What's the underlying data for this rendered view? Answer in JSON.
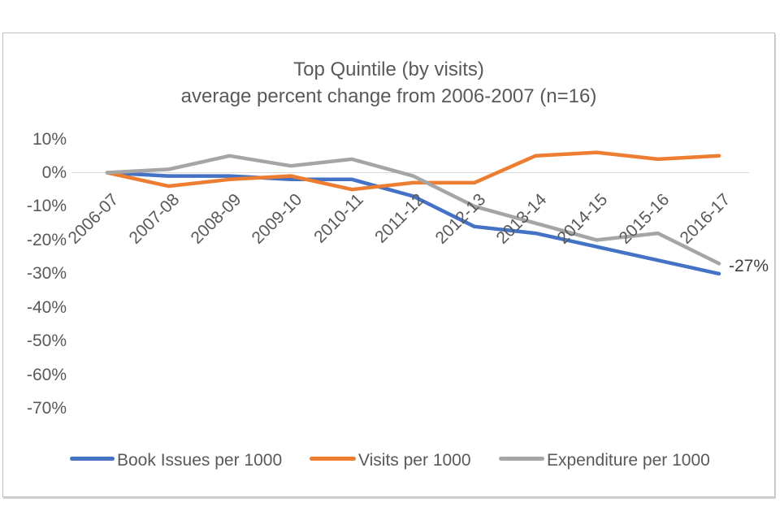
{
  "chart": {
    "title_line1": "Top Quintile (by visits)",
    "title_line2": "average percent change from 2006-2007 (n=16)"
  },
  "chart_data": {
    "type": "line",
    "title": "Top Quintile (by visits)",
    "subtitle": "average percent change from 2006-2007 (n=16)",
    "categories": [
      "2006-07",
      "2007-08",
      "2008-09",
      "2009-10",
      "2010-11",
      "2011-12",
      "2012-13",
      "2013-14",
      "2014-15",
      "2015-16",
      "2016-17"
    ],
    "series": [
      {
        "name": "Book Issues per 1000",
        "color": "#4472C4",
        "values": [
          0,
          -1,
          -1,
          -2,
          -2,
          -7,
          -16,
          -18,
          -22,
          -26,
          -30
        ]
      },
      {
        "name": "Visits per 1000",
        "color": "#ED7D31",
        "values": [
          0,
          -4,
          -2,
          -1,
          -5,
          -3,
          -3,
          5,
          6,
          4,
          5
        ]
      },
      {
        "name": "Expenditure per 1000",
        "color": "#A5A5A5",
        "values": [
          0,
          1,
          5,
          2,
          4,
          -1,
          -10,
          -15,
          -20,
          -18,
          -27
        ]
      }
    ],
    "y_axis": {
      "ticks": [
        "10%",
        "0%",
        "-10%",
        "-20%",
        "-30%",
        "-40%",
        "-50%",
        "-60%",
        "-70%"
      ],
      "tick_values": [
        10,
        0,
        -10,
        -20,
        -30,
        -40,
        -50,
        -60,
        -70
      ],
      "unit": "percent"
    },
    "annotation": {
      "text": "-27%",
      "series": "Expenditure per 1000",
      "category": "2016-17"
    },
    "legend_position": "bottom",
    "gridlines": "zero-line-only",
    "zero_line_color": "#D9D9D9",
    "text_color": "#595959"
  }
}
